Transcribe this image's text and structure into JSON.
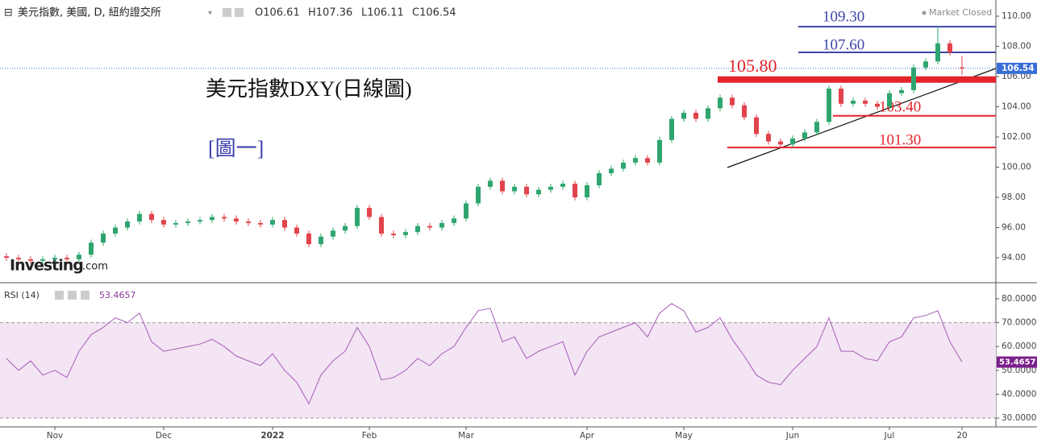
{
  "header": {
    "symbol": "美元指數, 美國, D, 紐約證交所",
    "ohlc": [
      "O106.61",
      "H107.36",
      "L106.11",
      "C106.54"
    ],
    "status": "Market Closed",
    "logo": [
      "Investing",
      ".com"
    ]
  },
  "chart_data": [
    {
      "type": "candlestick",
      "title": "美元指數DXY(日線圖)",
      "subtitle": "[圖一]",
      "categories": [
        null,
        null,
        null,
        null,
        "Nov",
        null,
        null,
        null,
        null,
        null,
        null,
        null,
        null,
        "Dec",
        null,
        null,
        null,
        null,
        null,
        null,
        null,
        null,
        "2022",
        null,
        null,
        null,
        null,
        null,
        null,
        null,
        "Feb",
        null,
        null,
        null,
        null,
        null,
        null,
        null,
        "Mar",
        null,
        null,
        null,
        null,
        null,
        null,
        null,
        null,
        null,
        "Apr",
        null,
        null,
        null,
        null,
        null,
        null,
        null,
        "May",
        null,
        null,
        null,
        null,
        null,
        null,
        null,
        null,
        "Jun",
        null,
        null,
        null,
        null,
        null,
        null,
        null,
        "Jul",
        null,
        null,
        null,
        null,
        null,
        "20"
      ],
      "open": [
        94.1,
        94.0,
        93.9,
        93.8,
        93.9,
        94.0,
        93.9,
        94.2,
        95.0,
        95.6,
        96.0,
        96.4,
        96.9,
        96.5,
        96.2,
        96.3,
        96.4,
        96.5,
        96.7,
        96.6,
        96.4,
        96.3,
        96.2,
        96.5,
        96.0,
        95.6,
        94.9,
        95.4,
        95.8,
        96.1,
        97.3,
        96.7,
        95.6,
        95.5,
        95.7,
        96.1,
        96.0,
        96.3,
        96.6,
        97.6,
        98.7,
        99.1,
        98.4,
        98.7,
        98.2,
        98.5,
        98.7,
        98.9,
        98.0,
        98.8,
        99.6,
        99.9,
        100.3,
        100.6,
        100.3,
        101.8,
        103.2,
        103.6,
        103.2,
        103.9,
        104.6,
        104.1,
        103.3,
        102.2,
        101.7,
        101.5,
        101.9,
        102.3,
        103.0,
        105.2,
        104.2,
        104.4,
        104.2,
        104.0,
        104.9,
        105.1,
        106.6,
        107.0,
        108.2,
        106.61
      ],
      "high": [
        94.3,
        94.2,
        94.1,
        94.1,
        94.2,
        94.2,
        94.4,
        95.2,
        95.8,
        96.2,
        96.6,
        97.1,
        97.1,
        96.7,
        96.5,
        96.6,
        96.7,
        96.9,
        96.9,
        96.8,
        96.6,
        96.5,
        96.7,
        96.7,
        96.2,
        95.8,
        95.6,
        96.0,
        96.3,
        97.5,
        97.5,
        96.9,
        95.8,
        95.9,
        96.3,
        96.3,
        96.5,
        96.8,
        97.8,
        98.9,
        99.3,
        99.3,
        98.9,
        98.9,
        98.7,
        98.9,
        99.1,
        99.1,
        99.0,
        99.8,
        100.1,
        100.5,
        100.8,
        100.8,
        102.0,
        103.4,
        103.8,
        103.8,
        104.1,
        104.8,
        104.8,
        104.3,
        103.5,
        102.4,
        101.9,
        102.1,
        102.5,
        103.2,
        105.4,
        105.4,
        104.6,
        104.6,
        104.4,
        105.1,
        105.3,
        106.8,
        107.2,
        109.3,
        108.4,
        107.36
      ],
      "low": [
        93.8,
        93.7,
        93.6,
        93.6,
        93.7,
        93.7,
        93.7,
        94.0,
        94.8,
        95.4,
        95.8,
        96.2,
        96.3,
        96.0,
        96.0,
        96.1,
        96.2,
        96.3,
        96.4,
        96.2,
        96.1,
        96.0,
        96.0,
        95.8,
        95.4,
        94.7,
        94.7,
        95.2,
        95.6,
        95.9,
        96.5,
        95.4,
        95.3,
        95.3,
        95.5,
        95.8,
        95.8,
        96.1,
        96.4,
        97.4,
        98.5,
        98.2,
        98.2,
        98.0,
        98.0,
        98.3,
        98.5,
        97.8,
        97.8,
        98.6,
        99.4,
        99.7,
        100.1,
        100.1,
        100.1,
        101.6,
        103.0,
        103.0,
        103.0,
        103.7,
        103.9,
        103.1,
        102.0,
        101.5,
        101.3,
        101.3,
        101.7,
        102.1,
        102.8,
        104.0,
        104.0,
        104.0,
        103.8,
        103.8,
        104.7,
        104.9,
        106.4,
        106.8,
        107.4,
        106.11
      ],
      "close": [
        94.0,
        93.9,
        93.8,
        93.9,
        94.0,
        93.9,
        94.2,
        95.0,
        95.6,
        96.0,
        96.4,
        96.9,
        96.5,
        96.2,
        96.3,
        96.4,
        96.5,
        96.7,
        96.6,
        96.4,
        96.3,
        96.2,
        96.5,
        96.0,
        95.6,
        94.9,
        95.4,
        95.8,
        96.1,
        97.3,
        96.7,
        95.6,
        95.5,
        95.7,
        96.1,
        96.0,
        96.3,
        96.6,
        97.6,
        98.7,
        99.1,
        98.4,
        98.7,
        98.2,
        98.5,
        98.7,
        98.9,
        98.0,
        98.8,
        99.6,
        99.9,
        100.3,
        100.6,
        100.3,
        101.8,
        103.2,
        103.6,
        103.2,
        103.9,
        104.6,
        104.1,
        103.3,
        102.2,
        101.7,
        101.5,
        101.9,
        102.3,
        103.0,
        105.2,
        104.2,
        104.4,
        104.2,
        104.0,
        104.9,
        105.1,
        106.6,
        107.0,
        108.2,
        107.6,
        106.54
      ],
      "up_color": "#2ea56f",
      "down_color": "#e2434b",
      "ylim": [
        92.4,
        111.07
      ],
      "yticks": [
        {
          "value": 94,
          "label": "94.00"
        },
        {
          "value": 96,
          "label": "96.00"
        },
        {
          "value": 98,
          "label": "98.00"
        },
        {
          "value": 100,
          "label": "100.00"
        },
        {
          "value": 102,
          "label": "102.00"
        },
        {
          "value": 104,
          "label": "104.00"
        },
        {
          "value": 106,
          "label": "106.00"
        },
        {
          "value": 108,
          "label": "108.00"
        },
        {
          "value": 110,
          "label": "110.00"
        }
      ],
      "last_price": {
        "value": 106.54,
        "label": "106.54"
      },
      "levels": [
        {
          "value": 109.3,
          "label": "109.30",
          "color": "#3d45a8"
        },
        {
          "value": 107.6,
          "label": "107.60",
          "color": "#3d45a8"
        },
        {
          "value": 105.8,
          "label": "105.80",
          "color": "#e3242b"
        },
        {
          "value": 103.4,
          "label": "103.40",
          "color": "#e3242b"
        },
        {
          "value": 101.3,
          "label": "101.30",
          "color": "#e3242b"
        }
      ]
    },
    {
      "type": "line",
      "name": "RSI (14)",
      "color": "#a65cb8",
      "values": [
        55,
        50,
        54,
        48,
        50,
        47,
        58,
        65,
        68,
        72,
        70,
        74,
        62,
        58,
        59,
        60,
        61,
        63,
        60,
        56,
        54,
        52,
        57,
        50,
        45,
        36,
        48,
        54,
        58,
        68,
        60,
        46,
        47,
        50,
        55,
        52,
        57,
        60,
        68,
        75,
        76,
        62,
        64,
        55,
        58,
        60,
        62,
        48,
        58,
        64,
        66,
        68,
        70,
        64,
        74,
        78,
        75,
        66,
        68,
        72,
        63,
        56,
        48,
        45,
        44,
        50,
        55,
        60,
        72,
        58,
        58,
        55,
        54,
        62,
        64,
        72,
        73,
        75,
        62,
        53.4657
      ],
      "last_label": "53.4657",
      "band": [
        30,
        70
      ],
      "band_color": "#f3e5f3",
      "ylim": [
        26.3,
        86.4
      ],
      "yticks": [
        {
          "value": 30,
          "label": "30.0000"
        },
        {
          "value": 40,
          "label": "40.0000"
        },
        {
          "value": 50,
          "label": "50.0000"
        },
        {
          "value": 60,
          "label": "60.0000"
        },
        {
          "value": 70,
          "label": "70.0000"
        },
        {
          "value": 80,
          "label": "80.0000"
        }
      ]
    }
  ]
}
